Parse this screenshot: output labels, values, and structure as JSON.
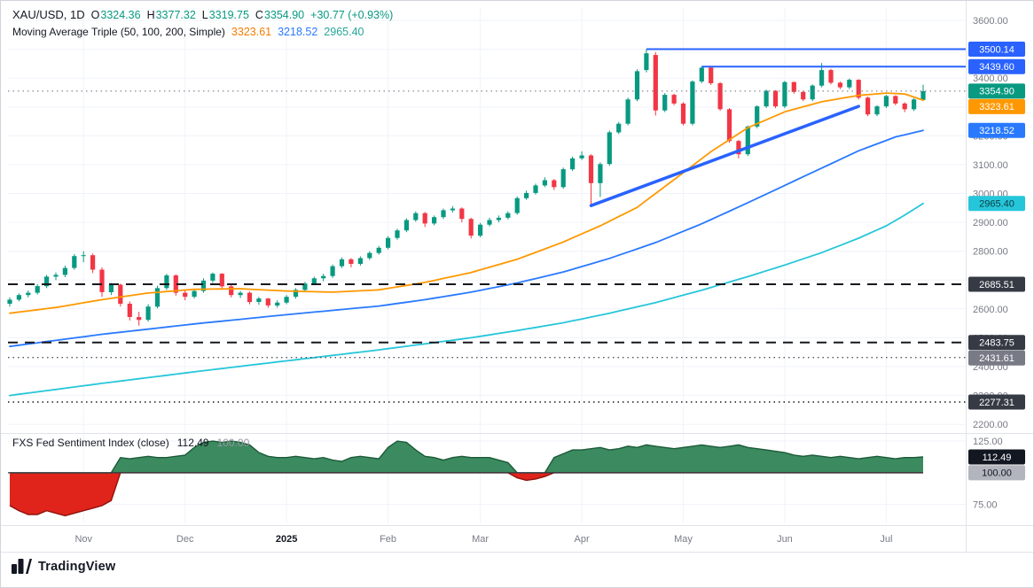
{
  "legend": {
    "symbol": "XAU/USD, 1D",
    "ohlc": [
      {
        "label": "O",
        "value": "3324.36"
      },
      {
        "label": "H",
        "value": "3377.32"
      },
      {
        "label": "L",
        "value": "3319.75"
      },
      {
        "label": "C",
        "value": "3354.90"
      }
    ],
    "change": "+30.77 (+0.93%)"
  },
  "ma_legend": {
    "title": "Moving Average Triple (50, 100, 200, Simple)",
    "values": [
      {
        "name": "SMA 50",
        "value": "3323.61",
        "color": "#F57C00"
      },
      {
        "name": "SMA 100",
        "value": "3218.52",
        "color": "#2979FF"
      },
      {
        "name": "SMA 200",
        "value": "2965.40",
        "color": "#26A69A"
      }
    ]
  },
  "sentiment_legend": {
    "title": "FXS Fed Sentiment Index (close)",
    "value": "112.49",
    "baseline": "100.00"
  },
  "footer": {
    "brand": "TradingView"
  },
  "colors": {
    "candle_up": "#089981",
    "candle_down": "#F23645",
    "level_blue": "#2962FF",
    "axis_text": "#787B86",
    "grid": "#F0F3FA"
  },
  "chart_data": [
    {
      "type": "candlestick",
      "title": "XAU/USD, 1D",
      "y_range": [
        2176,
        3643
      ],
      "y_ticks": [
        2200,
        2300,
        2400,
        2500,
        2600,
        2700,
        2800,
        2900,
        3000,
        3100,
        3200,
        3300,
        3400,
        3500,
        3600
      ],
      "x_labels": [
        {
          "label": "Nov",
          "index": 8
        },
        {
          "label": "Dec",
          "index": 19
        },
        {
          "label": "2025",
          "index": 30,
          "major": true
        },
        {
          "label": "Feb",
          "index": 41
        },
        {
          "label": "Mar",
          "index": 51
        },
        {
          "label": "Apr",
          "index": 62
        },
        {
          "label": "May",
          "index": 73
        },
        {
          "label": "Jun",
          "index": 84
        },
        {
          "label": "Jul",
          "index": 95
        }
      ],
      "candle_up_color": "#089981",
      "candle_down_color": "#F23645",
      "candles": [
        [
          2618,
          2640,
          2608,
          2632
        ],
        [
          2632,
          2654,
          2626,
          2648
        ],
        [
          2648,
          2664,
          2640,
          2656
        ],
        [
          2656,
          2686,
          2650,
          2679
        ],
        [
          2679,
          2718,
          2672,
          2712
        ],
        [
          2712,
          2726,
          2700,
          2718
        ],
        [
          2718,
          2750,
          2710,
          2742
        ],
        [
          2742,
          2790,
          2736,
          2783
        ],
        [
          2783,
          2800,
          2762,
          2786
        ],
        [
          2786,
          2792,
          2724,
          2736
        ],
        [
          2736,
          2744,
          2642,
          2658
        ],
        [
          2658,
          2690,
          2648,
          2684
        ],
        [
          2684,
          2688,
          2608,
          2618
        ],
        [
          2618,
          2626,
          2560,
          2572
        ],
        [
          2572,
          2590,
          2542,
          2562
        ],
        [
          2562,
          2616,
          2556,
          2608
        ],
        [
          2608,
          2680,
          2602,
          2672
        ],
        [
          2672,
          2722,
          2666,
          2716
        ],
        [
          2716,
          2720,
          2646,
          2656
        ],
        [
          2656,
          2664,
          2630,
          2642
        ],
        [
          2642,
          2668,
          2636,
          2662
        ],
        [
          2662,
          2706,
          2656,
          2698
        ],
        [
          2698,
          2726,
          2690,
          2722
        ],
        [
          2722,
          2724,
          2670,
          2678
        ],
        [
          2678,
          2684,
          2640,
          2648
        ],
        [
          2648,
          2662,
          2638,
          2656
        ],
        [
          2656,
          2660,
          2616,
          2624
        ],
        [
          2624,
          2642,
          2614,
          2636
        ],
        [
          2636,
          2638,
          2604,
          2612
        ],
        [
          2612,
          2630,
          2604,
          2622
        ],
        [
          2622,
          2648,
          2616,
          2642
        ],
        [
          2642,
          2672,
          2636,
          2666
        ],
        [
          2666,
          2694,
          2660,
          2688
        ],
        [
          2688,
          2712,
          2682,
          2706
        ],
        [
          2706,
          2722,
          2696,
          2714
        ],
        [
          2714,
          2754,
          2708,
          2748
        ],
        [
          2748,
          2778,
          2742,
          2772
        ],
        [
          2772,
          2776,
          2744,
          2756
        ],
        [
          2756,
          2782,
          2750,
          2776
        ],
        [
          2776,
          2800,
          2770,
          2794
        ],
        [
          2794,
          2818,
          2788,
          2812
        ],
        [
          2812,
          2852,
          2806,
          2846
        ],
        [
          2846,
          2878,
          2840,
          2872
        ],
        [
          2872,
          2914,
          2866,
          2908
        ],
        [
          2908,
          2938,
          2902,
          2932
        ],
        [
          2932,
          2936,
          2884,
          2896
        ],
        [
          2896,
          2924,
          2890,
          2918
        ],
        [
          2918,
          2948,
          2912,
          2942
        ],
        [
          2942,
          2956,
          2934,
          2948
        ],
        [
          2948,
          2952,
          2900,
          2912
        ],
        [
          2912,
          2916,
          2844,
          2854
        ],
        [
          2854,
          2898,
          2848,
          2892
        ],
        [
          2892,
          2916,
          2886,
          2908
        ],
        [
          2908,
          2924,
          2900,
          2916
        ],
        [
          2916,
          2938,
          2910,
          2932
        ],
        [
          2932,
          2990,
          2926,
          2984
        ],
        [
          2984,
          3010,
          2978,
          3002
        ],
        [
          3002,
          3034,
          2996,
          3028
        ],
        [
          3028,
          3056,
          3022,
          3046
        ],
        [
          3046,
          3050,
          3012,
          3022
        ],
        [
          3022,
          3090,
          3016,
          3084
        ],
        [
          3084,
          3128,
          3078,
          3122
        ],
        [
          3122,
          3146,
          3116,
          3132
        ],
        [
          3132,
          3136,
          2962,
          3036
        ],
        [
          3036,
          3108,
          2988,
          3102
        ],
        [
          3102,
          3218,
          3096,
          3212
        ],
        [
          3212,
          3248,
          3206,
          3242
        ],
        [
          3242,
          3332,
          3236,
          3326
        ],
        [
          3326,
          3430,
          3320,
          3424
        ],
        [
          3428,
          3500,
          3420,
          3486
        ],
        [
          3480,
          3490,
          3270,
          3288
        ],
        [
          3288,
          3348,
          3282,
          3342
        ],
        [
          3342,
          3346,
          3306,
          3312
        ],
        [
          3312,
          3316,
          3236,
          3242
        ],
        [
          3242,
          3392,
          3236,
          3388
        ],
        [
          3388,
          3440,
          3382,
          3436
        ],
        [
          3436,
          3438,
          3376,
          3382
        ],
        [
          3382,
          3386,
          3286,
          3292
        ],
        [
          3292,
          3296,
          3176,
          3182
        ],
        [
          3182,
          3186,
          3122,
          3136
        ],
        [
          3136,
          3236,
          3130,
          3232
        ],
        [
          3232,
          3306,
          3226,
          3302
        ],
        [
          3302,
          3360,
          3296,
          3356
        ],
        [
          3356,
          3358,
          3296,
          3302
        ],
        [
          3302,
          3390,
          3296,
          3386
        ],
        [
          3386,
          3388,
          3346,
          3352
        ],
        [
          3352,
          3356,
          3320,
          3326
        ],
        [
          3326,
          3378,
          3320,
          3374
        ],
        [
          3374,
          3452,
          3368,
          3428
        ],
        [
          3428,
          3432,
          3378,
          3384
        ],
        [
          3384,
          3388,
          3362,
          3368
        ],
        [
          3368,
          3398,
          3362,
          3394
        ],
        [
          3394,
          3396,
          3326,
          3332
        ],
        [
          3332,
          3336,
          3268,
          3274
        ],
        [
          3274,
          3306,
          3268,
          3302
        ],
        [
          3302,
          3342,
          3296,
          3338
        ],
        [
          3338,
          3340,
          3306,
          3312
        ],
        [
          3312,
          3316,
          3282,
          3292
        ],
        [
          3292,
          3330,
          3286,
          3326
        ],
        [
          3324.36,
          3377.32,
          3319.75,
          3354.9
        ]
      ],
      "sma_overlays": [
        {
          "period": 50,
          "color": "#FF9800",
          "last": 3323.61,
          "badge_fg": "#FFFFFF",
          "anchors": [
            [
              0,
              2585
            ],
            [
              5,
              2605
            ],
            [
              10,
              2632
            ],
            [
              15,
              2655
            ],
            [
              20,
              2668
            ],
            [
              25,
              2670
            ],
            [
              30,
              2662
            ],
            [
              35,
              2658
            ],
            [
              40,
              2666
            ],
            [
              45,
              2692
            ],
            [
              50,
              2726
            ],
            [
              55,
              2772
            ],
            [
              60,
              2832
            ],
            [
              64,
              2888
            ],
            [
              68,
              2952
            ],
            [
              72,
              3048
            ],
            [
              76,
              3145
            ],
            [
              80,
              3228
            ],
            [
              84,
              3283
            ],
            [
              88,
              3318
            ],
            [
              92,
              3340
            ],
            [
              95,
              3348
            ],
            [
              97,
              3345
            ],
            [
              99,
              3323.61
            ]
          ]
        },
        {
          "period": 100,
          "color": "#2979FF",
          "last": 3218.52,
          "badge_fg": "#FFFFFF",
          "anchors": [
            [
              0,
              2470
            ],
            [
              10,
              2512
            ],
            [
              20,
              2548
            ],
            [
              30,
              2580
            ],
            [
              40,
              2610
            ],
            [
              45,
              2632
            ],
            [
              50,
              2658
            ],
            [
              55,
              2690
            ],
            [
              60,
              2728
            ],
            [
              65,
              2775
            ],
            [
              70,
              2830
            ],
            [
              75,
              2895
            ],
            [
              80,
              2968
            ],
            [
              84,
              3028
            ],
            [
              88,
              3088
            ],
            [
              92,
              3148
            ],
            [
              96,
              3196
            ],
            [
              99,
              3218.52
            ]
          ]
        },
        {
          "period": 200,
          "color": "#26C6DA",
          "last": 2965.4,
          "badge_fg": "#0B3C42",
          "anchors": [
            [
              0,
              2300
            ],
            [
              10,
              2342
            ],
            [
              20,
              2382
            ],
            [
              30,
              2420
            ],
            [
              40,
              2458
            ],
            [
              50,
              2500
            ],
            [
              55,
              2525
            ],
            [
              60,
              2552
            ],
            [
              65,
              2585
            ],
            [
              70,
              2622
            ],
            [
              75,
              2665
            ],
            [
              80,
              2712
            ],
            [
              84,
              2752
            ],
            [
              88,
              2795
            ],
            [
              92,
              2845
            ],
            [
              95,
              2888
            ],
            [
              97,
              2925
            ],
            [
              99,
              2965.4
            ]
          ]
        }
      ],
      "levels": [
        {
          "value": 3500.14,
          "style": "solid",
          "width": 2,
          "color": "#2962FF",
          "from_index": 69,
          "badge_bg": "#2962FF",
          "badge_fg": "#FFFFFF"
        },
        {
          "value": 3439.6,
          "style": "solid",
          "width": 2,
          "color": "#2962FF",
          "from_index": 75,
          "badge_bg": "#2962FF",
          "badge_fg": "#FFFFFF"
        },
        {
          "value": 3354.9,
          "style": "dotted",
          "width": 1,
          "color": "#6A6D78",
          "from_index": 0,
          "badge_bg": "#089981",
          "badge_fg": "#FFFFFF",
          "is_price": true
        },
        {
          "value": 2685.51,
          "style": "dashed",
          "width": 2,
          "color": "#16181E",
          "from_index": 0,
          "badge_bg": "#363A45",
          "badge_fg": "#FFFFFF"
        },
        {
          "value": 2483.75,
          "style": "dashed",
          "width": 2,
          "color": "#16181E",
          "from_index": 0,
          "badge_bg": "#363A45",
          "badge_fg": "#FFFFFF"
        },
        {
          "value": 2431.61,
          "style": "dotted",
          "width": 1.4,
          "color": "#50535E",
          "from_index": 0,
          "badge_bg": "#787B86",
          "badge_fg": "#FFFFFF"
        },
        {
          "value": 2277.31,
          "style": "dotted",
          "width": 1.4,
          "color": "#16181E",
          "from_index": 0,
          "badge_bg": "#363A45",
          "badge_fg": "#FFFFFF"
        }
      ],
      "trendline": {
        "from": [
          63,
          2958
        ],
        "to": [
          92,
          3302
        ],
        "color": "#2962FF",
        "width": 3.5
      }
    },
    {
      "type": "area",
      "title": "FXS Fed Sentiment Index (close)",
      "last": 112.49,
      "baseline": 100,
      "y_range": [
        60,
        130
      ],
      "y_ticks": [
        125,
        100,
        75
      ],
      "pos_fill": "#3C8A5F",
      "pos_stroke": "#1C5B38",
      "neg_fill": "#E0241B",
      "neg_stroke": "#8F130E",
      "values": [
        74,
        70,
        67,
        67,
        70,
        68,
        66,
        68,
        70,
        72,
        74,
        78,
        112,
        111,
        112,
        113,
        112,
        112,
        113,
        114,
        120,
        124,
        125,
        124,
        125,
        124,
        122,
        116,
        113,
        112,
        112,
        113,
        112,
        111,
        112,
        110,
        109,
        112,
        113,
        112,
        111,
        120,
        125,
        124,
        118,
        113,
        112,
        110,
        112,
        113,
        112,
        112,
        112,
        110,
        108,
        96,
        94,
        95,
        97,
        112,
        115,
        118,
        118,
        119,
        120,
        118,
        119,
        121,
        120,
        122,
        121,
        120,
        119,
        120,
        121,
        122,
        121,
        120,
        121,
        122,
        120,
        119,
        118,
        117,
        116,
        114,
        113,
        114,
        113,
        112,
        113,
        112,
        111,
        112,
        113,
        112,
        111,
        112,
        112,
        112.49
      ],
      "badges": [
        {
          "value": 112.49,
          "bg": "#131722",
          "fg": "#FFFFFF"
        },
        {
          "value": 100,
          "bg": "#B2B5BE",
          "fg": "#131722"
        }
      ]
    }
  ]
}
